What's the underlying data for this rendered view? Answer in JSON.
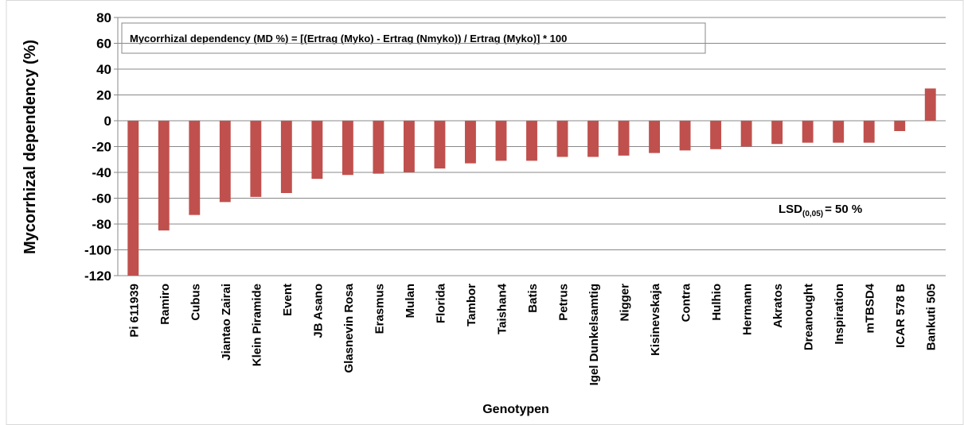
{
  "chart_data": {
    "type": "bar",
    "y_label": "Mycorrhizal dependency (%)",
    "x_label": "Genotypen",
    "formula": "Mycorrhizal dependency (MD %) = [(Ertrag (Myko) - Ertrag (Nmyko)) / Ertrag (Myko)] * 100",
    "lsd": {
      "text": "LSD",
      "sub": "(0,05)",
      "suffix": "=  50 %"
    },
    "categories": [
      "Pi 611939",
      "Ramiro",
      "Cubus",
      "Jiantao Zairai",
      "Klein Piramide",
      "Event",
      "JB Asano",
      "Glasnevin Rosa",
      "Erasmus",
      "Mulan",
      "Florida",
      "Tambor",
      "Taishan4",
      "Batis",
      "Petrus",
      "Igel Dunkelsamtig",
      "Nigger",
      "Kisinevskaja",
      "Contra",
      "Hulhio",
      "Hermann",
      "Akratos",
      "Dreanought",
      "Inspiration",
      "mTBSD4",
      "ICAR 578 B",
      "Bankuti 505"
    ],
    "values": [
      -120,
      -85,
      -73,
      -63,
      -59,
      -56,
      -45,
      -42,
      -41,
      -40,
      -37,
      -33,
      -31,
      -31,
      -28,
      -28,
      -27,
      -25,
      -23,
      -22,
      -20,
      -18,
      -17,
      -17,
      -17,
      -8,
      25
    ],
    "color": "#c0504d",
    "ylim": [
      -120,
      80
    ],
    "yticks": [
      -120,
      -100,
      -80,
      -60,
      -40,
      -20,
      0,
      20,
      40,
      60,
      80
    ],
    "grid": true
  }
}
